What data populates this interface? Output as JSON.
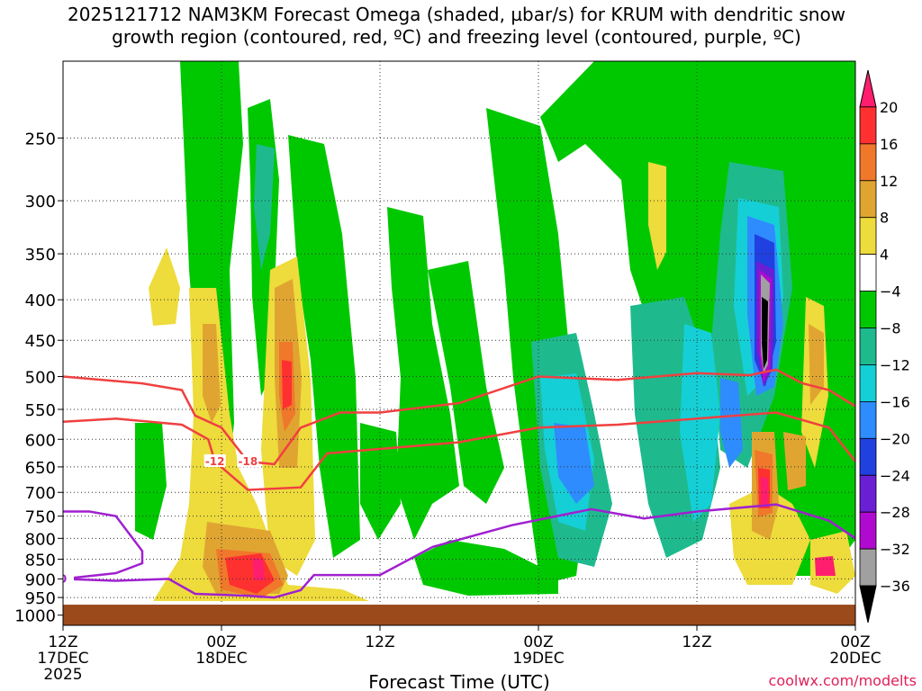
{
  "title_line1": "2025121712 NAM3KM Forecast Omega (shaded, µbar/s) for KRUM with dendritic snow",
  "title_line2": "growth region (contoured, red, ºC) and freezing level (contoured, purple, ºC)",
  "watermark": "coolwx.com/modelts",
  "chart_data": {
    "type": "heatmap",
    "xlabel": "Forecast Time (UTC)",
    "ylabel": "",
    "x_ticks": [
      {
        "hour": 0,
        "label": "12Z",
        "sub1": "17DEC",
        "sub2": "2025"
      },
      {
        "hour": 12,
        "label": "00Z",
        "sub1": "18DEC",
        "sub2": ""
      },
      {
        "hour": 24,
        "label": "12Z",
        "sub1": "",
        "sub2": ""
      },
      {
        "hour": 36,
        "label": "00Z",
        "sub1": "19DEC",
        "sub2": ""
      },
      {
        "hour": 48,
        "label": "12Z",
        "sub1": "",
        "sub2": ""
      },
      {
        "hour": 60,
        "label": "00Z",
        "sub1": "20DEC",
        "sub2": ""
      }
    ],
    "xlim": [
      0,
      60
    ],
    "y_ticks": [
      250,
      300,
      350,
      400,
      450,
      500,
      550,
      600,
      650,
      700,
      750,
      800,
      850,
      900,
      950,
      1000
    ],
    "ylim_hPa": [
      1030,
      200
    ],
    "colorbar": {
      "ticks": [
        "20",
        "16",
        "12",
        "8",
        "4",
        "−4",
        "−8",
        "−12",
        "−16",
        "−20",
        "−24",
        "−28",
        "−32",
        "−36"
      ],
      "colors": [
        "#ff1e6e",
        "#ff3030",
        "#f0782a",
        "#e0a531",
        "#eedb3c",
        "#ffffff",
        "#00c800",
        "#1eba8e",
        "#15cfd6",
        "#2e8cff",
        "#2040e0",
        "#6a1fd4",
        "#b00ad0",
        "#a0a0a0",
        "#000000"
      ]
    },
    "ground_hPa": 970,
    "contours": [
      {
        "name": "-18",
        "color": "#f04040",
        "points": [
          [
            0,
            500
          ],
          [
            3,
            505
          ],
          [
            6,
            510
          ],
          [
            9,
            520
          ],
          [
            10,
            560
          ],
          [
            12,
            580
          ],
          [
            14,
            640
          ],
          [
            16,
            645
          ],
          [
            18,
            580
          ],
          [
            21,
            555
          ],
          [
            24,
            555
          ],
          [
            30,
            540
          ],
          [
            36,
            500
          ],
          [
            42,
            505
          ],
          [
            48,
            495
          ],
          [
            52,
            498
          ],
          [
            54,
            490
          ],
          [
            56,
            510
          ],
          [
            58,
            520
          ],
          [
            60,
            545
          ]
        ]
      },
      {
        "name": "-12",
        "color": "#f04040",
        "points": [
          [
            0,
            570
          ],
          [
            4,
            565
          ],
          [
            9,
            575
          ],
          [
            11,
            600
          ],
          [
            11.5,
            640
          ],
          [
            14,
            695
          ],
          [
            18,
            690
          ],
          [
            20,
            625
          ],
          [
            25,
            615
          ],
          [
            30,
            605
          ],
          [
            36,
            580
          ],
          [
            42,
            575
          ],
          [
            48,
            565
          ],
          [
            54,
            555
          ],
          [
            58,
            580
          ],
          [
            60,
            640
          ]
        ]
      },
      {
        "name": "0",
        "color": "#a020d0",
        "points": [
          [
            0,
            740
          ],
          [
            2,
            740
          ],
          [
            4,
            750
          ],
          [
            6,
            830
          ],
          [
            6,
            860
          ],
          [
            4,
            885
          ],
          [
            0,
            900
          ],
          [
            4,
            905
          ],
          [
            8,
            900
          ],
          [
            10,
            940
          ],
          [
            14,
            945
          ],
          [
            16,
            950
          ],
          [
            18,
            930
          ],
          [
            19,
            890
          ],
          [
            24,
            890
          ],
          [
            28,
            820
          ],
          [
            34,
            770
          ],
          [
            40,
            735
          ],
          [
            44,
            755
          ],
          [
            48,
            740
          ],
          [
            54,
            725
          ],
          [
            58,
            760
          ],
          [
            60,
            800
          ]
        ]
      }
    ]
  }
}
